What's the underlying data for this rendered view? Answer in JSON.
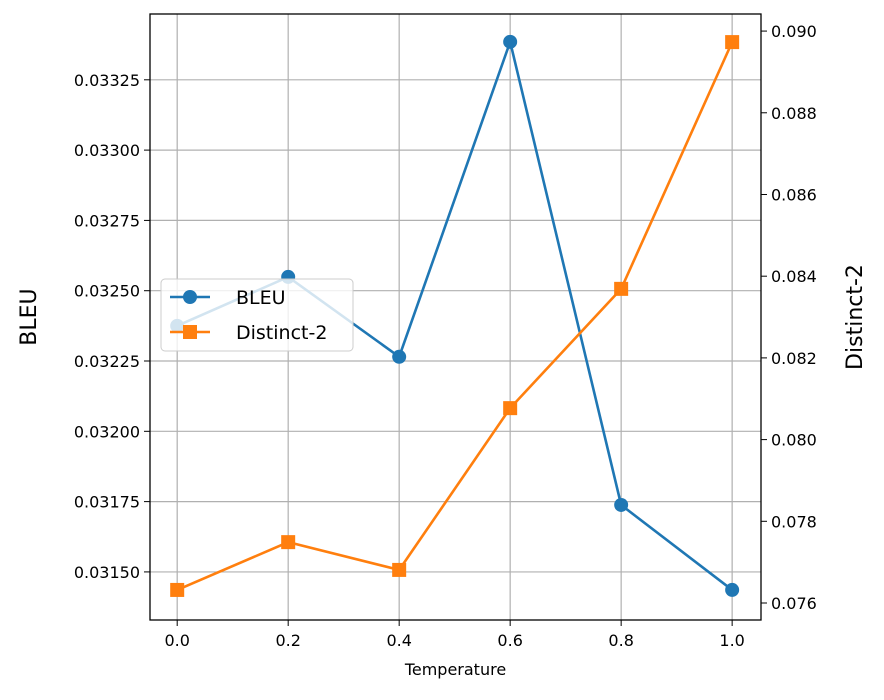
{
  "chart_data": {
    "type": "line",
    "title": "",
    "xlabel": "Temperature",
    "ylabel_left": "BLEU",
    "ylabel_right": "Distinct-2",
    "x": [
      0.0,
      0.2,
      0.4,
      0.6,
      0.8,
      1.0
    ],
    "xticks": [
      "0.0",
      "0.2",
      "0.4",
      "0.6",
      "0.8",
      "1.0"
    ],
    "xlim": [
      -0.049,
      1.052
    ],
    "ylim_left": [
      0.031329,
      0.033484
    ],
    "ylim_right": [
      0.075584,
      0.090418
    ],
    "yticks_left": [
      "0.03150",
      "0.03175",
      "0.03200",
      "0.03225",
      "0.03250",
      "0.03275",
      "0.03300",
      "0.03325"
    ],
    "yticks_right": [
      "0.076",
      "0.078",
      "0.080",
      "0.082",
      "0.084",
      "0.086",
      "0.088",
      "0.090"
    ],
    "grid": true,
    "legend_position": "center-left",
    "series": [
      {
        "name": "BLEU",
        "axis": "left",
        "marker": "circle",
        "color": "#1f77b4",
        "values": [
          0.032375,
          0.032549,
          0.032265,
          0.033385,
          0.031738,
          0.031436
        ]
      },
      {
        "name": "Distinct-2",
        "axis": "right",
        "marker": "square",
        "color": "#ff7f0e",
        "values": [
          0.07632,
          0.07749,
          0.07681,
          0.08077,
          0.08369,
          0.08973
        ]
      }
    ]
  }
}
